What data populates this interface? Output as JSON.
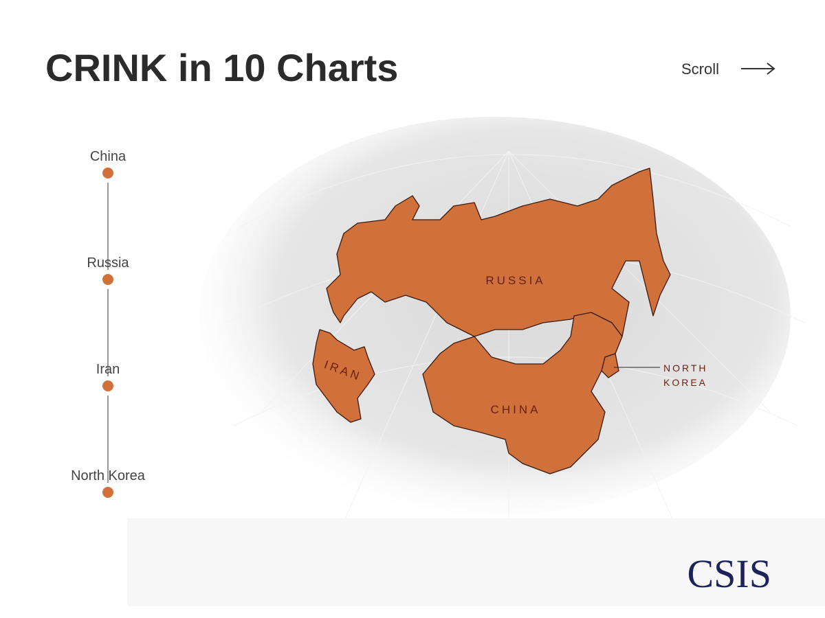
{
  "header": {
    "title": "CRINK in 10 Charts",
    "scroll": "Scroll"
  },
  "nav": {
    "items": [
      "China",
      "Russia",
      "Iran",
      "North Korea"
    ]
  },
  "map": {
    "labels": {
      "russia": "RUSSIA",
      "china": "CHINA",
      "iran": "IRAN",
      "north_korea": [
        "NORTH",
        "KOREA"
      ]
    }
  },
  "footer": {
    "logo": "CSIS"
  }
}
